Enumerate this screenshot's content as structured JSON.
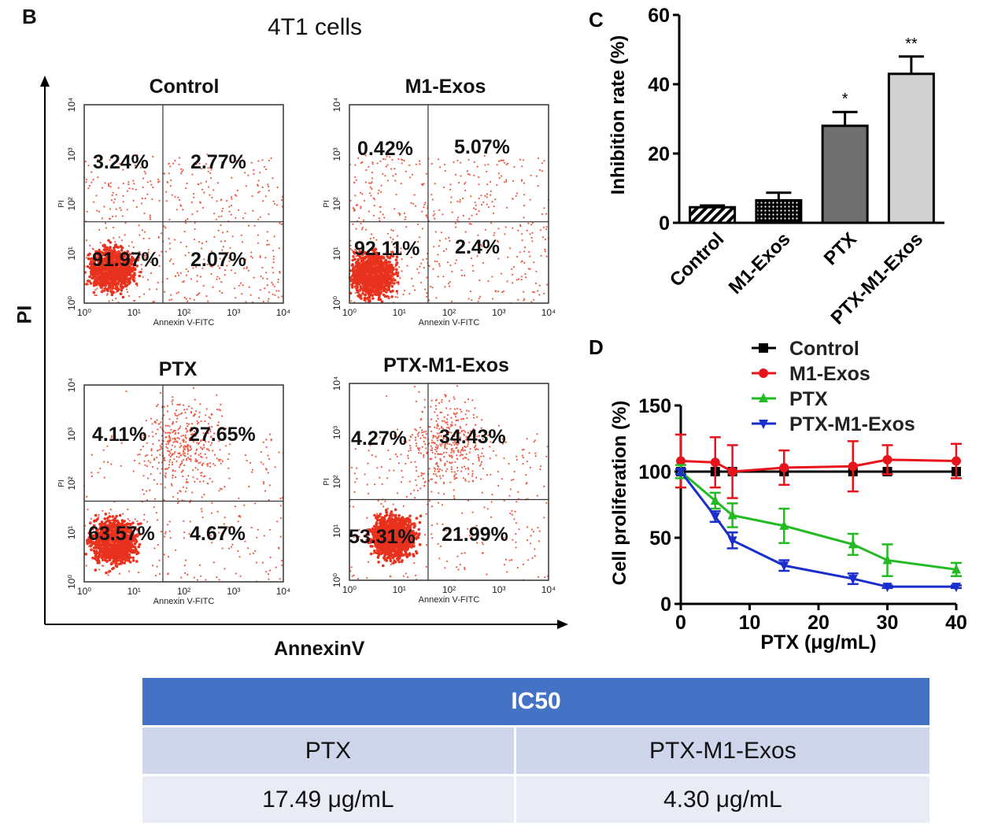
{
  "panel_b": {
    "letter": "B",
    "subtitle": "4T1 cells",
    "y_title": "PI",
    "x_title": "AnnexinV",
    "small_xlabel": "Annexin V-FITC",
    "small_ylabel": "PI",
    "ticks": [
      "10⁰",
      "10¹",
      "10²",
      "10³",
      "10⁴"
    ],
    "plots": [
      {
        "title": "Control",
        "ul": "3.24%",
        "ur": "2.77%",
        "ll": "91.97%",
        "lr": "2.07%"
      },
      {
        "title": "M1-Exos",
        "ul": "0.42%",
        "ur": "5.07%",
        "ll": "92.11%",
        "lr": "2.4%"
      },
      {
        "title": "PTX",
        "ul": "4.11%",
        "ur": "27.65%",
        "ll": "63.57%",
        "lr": "4.67%"
      },
      {
        "title": "PTX-M1-Exos",
        "ul": "4.27%",
        "ur": "34.43%",
        "ll": "53.31%",
        "lr": "21.99%"
      }
    ]
  },
  "chart_data": [
    {
      "type": "bar",
      "panel": "C",
      "categories": [
        "Control",
        "M1-Exos",
        "PTX",
        "PTX-M1-Exos"
      ],
      "values": [
        4.5,
        6.5,
        28,
        43
      ],
      "errors": [
        0.5,
        2.2,
        4,
        5
      ],
      "significance": [
        "",
        "",
        "*",
        "**"
      ],
      "fills": [
        "hatch",
        "dots",
        "#707070",
        "#d0d0d0"
      ],
      "ylabel": "Inhibition rate (%)",
      "ylim": [
        0,
        60
      ],
      "yticks": [
        0,
        20,
        40,
        60
      ]
    },
    {
      "type": "line",
      "panel": "D",
      "xlabel": "PTX (μg/mL)",
      "ylabel": "Cell proliferation (%)",
      "xlim": [
        0,
        40
      ],
      "ylim": [
        0,
        150
      ],
      "xticks": [
        0,
        10,
        20,
        30,
        40
      ],
      "yticks": [
        0,
        50,
        100,
        150
      ],
      "series": [
        {
          "name": "Control",
          "color": "#000000",
          "marker": "square",
          "x": [
            0,
            5,
            7.5,
            15,
            25,
            30,
            40
          ],
          "y": [
            100,
            100,
            100,
            100,
            100,
            100,
            100
          ],
          "err": [
            0,
            0,
            0,
            0,
            0,
            0,
            0
          ]
        },
        {
          "name": "M1-Exos",
          "color": "#e8141c",
          "marker": "circle",
          "x": [
            0,
            5,
            7.5,
            15,
            25,
            30,
            40
          ],
          "y": [
            108,
            107,
            100,
            103,
            104,
            109,
            108
          ],
          "err": [
            20,
            19,
            20,
            13,
            19,
            11,
            13
          ]
        },
        {
          "name": "PTX",
          "color": "#22bb22",
          "marker": "triangle-up",
          "x": [
            0,
            5,
            7.5,
            15,
            25,
            30,
            40
          ],
          "y": [
            100,
            78,
            67,
            59,
            45,
            33,
            26
          ],
          "err": [
            5,
            6,
            9,
            13,
            8,
            12,
            5
          ]
        },
        {
          "name": "PTX-M1-Exos",
          "color": "#1a2ecc",
          "marker": "triangle-down",
          "x": [
            0,
            5,
            7.5,
            15,
            25,
            30,
            40
          ],
          "y": [
            100,
            66,
            48,
            29,
            19,
            13,
            13
          ],
          "err": [
            2,
            4,
            6,
            4,
            4,
            1,
            1
          ]
        }
      ]
    },
    {
      "type": "table",
      "title": "IC50",
      "columns": [
        "PTX",
        "PTX-M1-Exos"
      ],
      "rows": [
        [
          "17.49 μg/mL",
          "4.30 μg/mL"
        ]
      ]
    }
  ]
}
